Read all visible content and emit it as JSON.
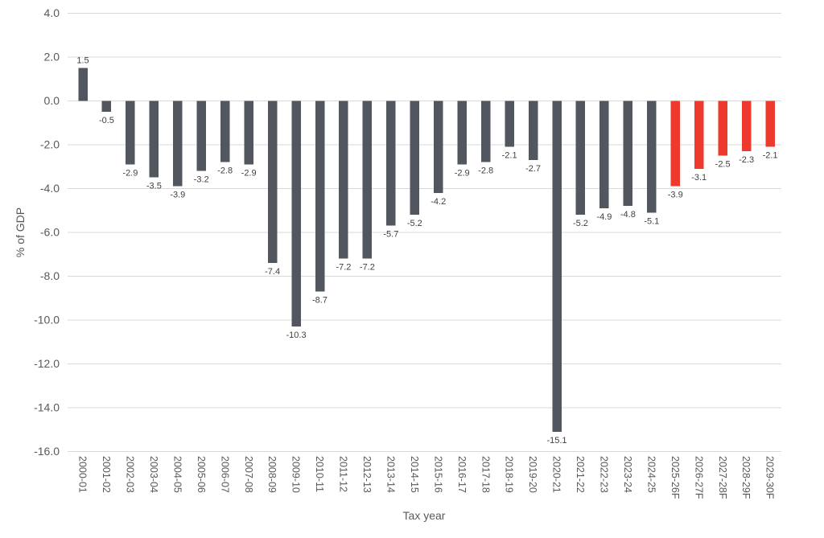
{
  "chart_data": {
    "type": "bar",
    "title": "",
    "xlabel": "Tax year",
    "ylabel": "% of GDP",
    "categories": [
      "2000-01",
      "2001-02",
      "2002-03",
      "2003-04",
      "2004-05",
      "2005-06",
      "2006-07",
      "2007-08",
      "2008-09",
      "2009-10",
      "2010-11",
      "2011-12",
      "2012-13",
      "2013-14",
      "2014-15",
      "2015-16",
      "2016-17",
      "2017-18",
      "2018-19",
      "2019-20",
      "2020-21",
      "2021-22",
      "2022-23",
      "2023-24",
      "2024-25",
      "2025-26F",
      "2026-27F",
      "2027-28F",
      "2028-29F",
      "2029-30F"
    ],
    "values": [
      1.5,
      -0.5,
      -2.9,
      -3.5,
      -3.9,
      -3.2,
      -2.8,
      -2.9,
      -7.4,
      -10.3,
      -8.7,
      -7.2,
      -7.2,
      -5.7,
      -5.2,
      -4.2,
      -2.9,
      -2.8,
      -2.1,
      -2.7,
      -15.1,
      -5.2,
      -4.9,
      -4.8,
      -5.1,
      -3.9,
      -3.1,
      -2.5,
      -2.3,
      -2.1
    ],
    "data_labels": [
      "1.5",
      "-0.5",
      "-2.9",
      "-3.5",
      "-3.9",
      "-3.2",
      "-2.8",
      "-2.9",
      "-7.4",
      "-10.3",
      "-8.7",
      "-7.2",
      "-7.2",
      "-5.7",
      "-5.2",
      "-4.2",
      "-2.9",
      "-2.8",
      "-2.1",
      "-2.7",
      "-15.1",
      "-5.2",
      "-4.9",
      "-4.8",
      "-5.1",
      "-3.9",
      "-3.1",
      "-2.5",
      "-2.3",
      "-2.1"
    ],
    "forecast_start_index": 25,
    "ylim": [
      -16,
      4
    ],
    "ytick_step": 2,
    "ytick_labels": [
      "4.0",
      "2.0",
      "0.0",
      "-2.0",
      "-4.0",
      "-6.0",
      "-8.0",
      "-10.0",
      "-12.0",
      "-14.0",
      "-16.0"
    ],
    "grid": true,
    "legend_position": "none",
    "colors": {
      "bar": "#51565F",
      "forecast_bar": "#EE3A2C",
      "gridline": "#D9D9D9",
      "axis_text": "#595959",
      "data_label_text": "#3F3F3F",
      "background": "#FFFFFF"
    }
  }
}
